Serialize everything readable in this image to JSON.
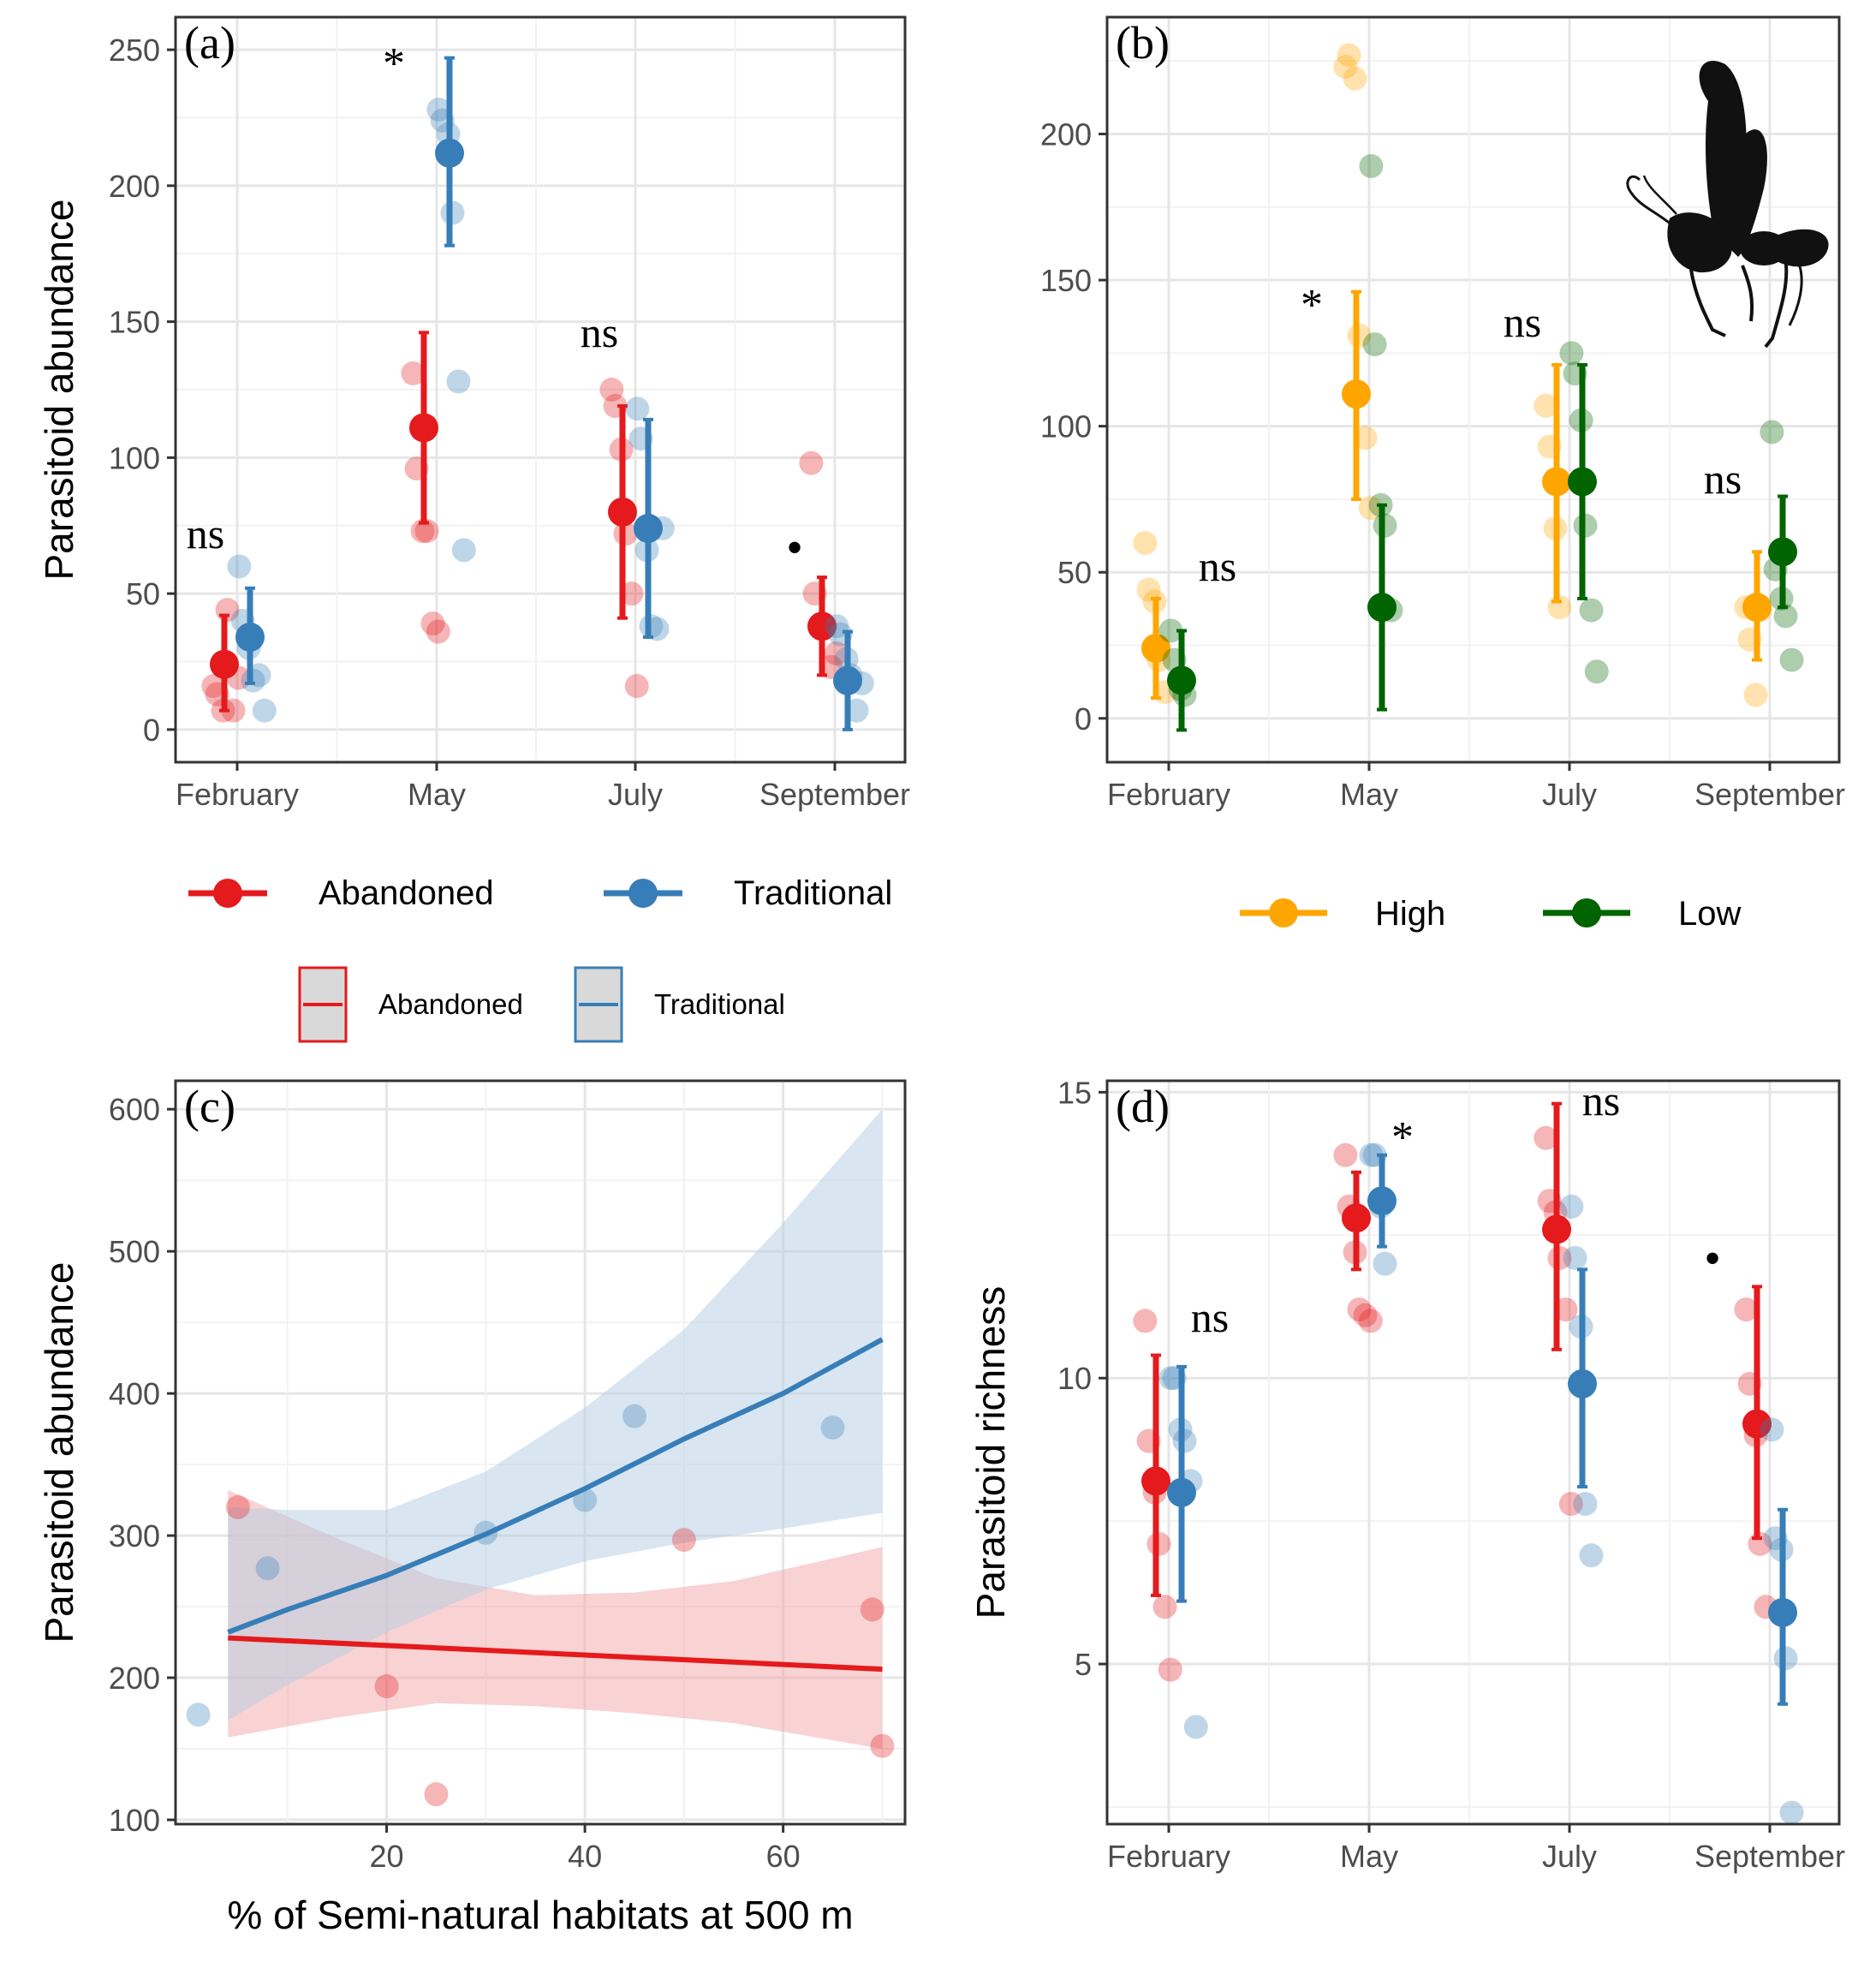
{
  "colors": {
    "abandoned": "#E41A1C",
    "traditional": "#377EB8",
    "high": "#FFA500",
    "low": "#006400",
    "abandoned_ribbon": "#F4A6A7",
    "traditional_ribbon": "#B3CDE3"
  },
  "chart_data": [
    {
      "panel": "(a)",
      "type": "scatter",
      "xlabel": "",
      "ylabel": "Parasitoid abundance",
      "categories": [
        "February",
        "May",
        "July",
        "September"
      ],
      "ylim": [
        -12,
        262
      ],
      "yticks": [
        0,
        50,
        100,
        150,
        200,
        250
      ],
      "series": [
        {
          "name": "Abandoned",
          "color_key": "abandoned",
          "mean": [
            24,
            111,
            80,
            38
          ],
          "lower": [
            7,
            76,
            41,
            20
          ],
          "upper": [
            42,
            146,
            119,
            56
          ],
          "raw": [
            [
              16,
              13,
              7,
              44,
              7,
              19
            ],
            [
              131,
              96,
              73,
              73,
              39,
              36
            ],
            [
              125,
              119,
              103,
              72,
              50,
              16
            ],
            [
              98,
              50,
              38,
              38,
              23,
              28
            ]
          ]
        },
        {
          "name": "Traditional",
          "color_key": "traditional",
          "mean": [
            34,
            212,
            74,
            18
          ],
          "lower": [
            17,
            178,
            34,
            0
          ],
          "upper": [
            52,
            247,
            114,
            36
          ],
          "raw": [
            [
              60,
              40,
              30,
              18,
              20,
              7
            ],
            [
              228,
              224,
              219,
              190,
              128,
              66
            ],
            [
              118,
              107,
              66,
              38,
              37,
              74
            ],
            [
              38,
              35,
              26,
              20,
              7,
              17
            ]
          ]
        }
      ],
      "annotations": [
        "ns",
        "*",
        "ns",
        "•"
      ],
      "legend": [
        "Abandoned",
        "Traditional"
      ]
    },
    {
      "panel": "(b)",
      "type": "scatter",
      "xlabel": "",
      "ylabel": "",
      "categories": [
        "February",
        "May",
        "July",
        "September"
      ],
      "ylim": [
        -15,
        240
      ],
      "yticks": [
        0,
        50,
        100,
        150,
        200
      ],
      "series": [
        {
          "name": "High",
          "color_key": "high",
          "mean": [
            24,
            111,
            81,
            38
          ],
          "lower": [
            7,
            75,
            40,
            20
          ],
          "upper": [
            41,
            146,
            121,
            57
          ],
          "raw": [
            [
              60,
              44,
              40,
              20,
              9
            ],
            [
              223,
              227,
              219,
              131,
              96,
              72
            ],
            [
              107,
              93,
              65,
              38
            ],
            [
              38,
              27,
              8,
              37
            ]
          ]
        },
        {
          "name": "Low",
          "color_key": "low",
          "mean": [
            13,
            38,
            81,
            57
          ],
          "lower": [
            -4,
            3,
            41,
            38
          ],
          "upper": [
            30,
            73,
            121,
            76
          ],
          "raw": [
            [
              30,
              20,
              10,
              8
            ],
            [
              189,
              128,
              73,
              66,
              37
            ],
            [
              125,
              118,
              102,
              66,
              37,
              16
            ],
            [
              98,
              51,
              41,
              35,
              20
            ]
          ]
        }
      ],
      "annotations": [
        "ns",
        "*",
        "ns",
        "ns"
      ],
      "legend": [
        "High",
        "Low"
      ]
    },
    {
      "panel": "(c)",
      "type": "line",
      "xlabel": "% of Semi-natural habitats at 500 m",
      "ylabel": "Parasitoid abundance",
      "xlim": [
        0,
        71
      ],
      "ylim": [
        97,
        620
      ],
      "xticks": [
        20,
        40,
        60
      ],
      "yticks": [
        100,
        200,
        300,
        400,
        500,
        600
      ],
      "series": [
        {
          "name": "Abandoned",
          "color_key": "abandoned",
          "fit_x": [
            4,
            70
          ],
          "fit_y": [
            228,
            206
          ],
          "ribbon_x": [
            4,
            15,
            25,
            35,
            45,
            55,
            70
          ],
          "ribbon_lower": [
            158,
            172,
            182,
            180,
            175,
            168,
            150
          ],
          "ribbon_upper": [
            332,
            298,
            270,
            258,
            260,
            268,
            292
          ],
          "points": [
            [
              5,
              320
            ],
            [
              20,
              194
            ],
            [
              25,
              118
            ],
            [
              50,
              297
            ],
            [
              69,
              248
            ],
            [
              70,
              152
            ]
          ]
        },
        {
          "name": "Traditional",
          "color_key": "traditional",
          "fit_x": [
            4,
            10,
            20,
            30,
            40,
            50,
            60,
            70
          ],
          "fit_y": [
            232,
            248,
            272,
            301,
            333,
            368,
            400,
            438
          ],
          "ribbon_x": [
            4,
            10,
            20,
            30,
            40,
            50,
            60,
            70
          ],
          "ribbon_lower": [
            170,
            195,
            232,
            262,
            282,
            295,
            305,
            316
          ],
          "ribbon_upper": [
            320,
            318,
            318,
            345,
            390,
            445,
            520,
            600
          ],
          "points": [
            [
              1,
              174
            ],
            [
              8,
              277
            ],
            [
              30,
              302
            ],
            [
              40,
              325
            ],
            [
              45,
              384
            ],
            [
              65,
              376
            ]
          ]
        }
      ],
      "legend": [
        "Abandoned",
        "Traditional"
      ]
    },
    {
      "panel": "(d)",
      "type": "scatter",
      "xlabel": "",
      "ylabel": "Parasitoid richness",
      "categories": [
        "February",
        "May",
        "July",
        "September"
      ],
      "ylim": [
        2.2,
        15.2
      ],
      "yticks": [
        5,
        10,
        15
      ],
      "series": [
        {
          "name": "Abandoned",
          "color_key": "abandoned",
          "mean": [
            8.2,
            12.8,
            12.6,
            9.2
          ],
          "lower": [
            6.2,
            11.9,
            10.5,
            7.2
          ],
          "upper": [
            10.4,
            13.6,
            14.8,
            11.6
          ],
          "raw": [
            [
              11,
              8.9,
              8,
              7.1,
              6,
              4.9
            ],
            [
              13.9,
              13,
              12.2,
              11.2,
              11.1,
              11
            ],
            [
              14.2,
              13.1,
              12.9,
              12.1,
              11.2,
              7.8
            ],
            [
              11.2,
              9.9,
              9,
              7.1,
              6
            ]
          ]
        },
        {
          "name": "Traditional",
          "color_key": "traditional",
          "mean": [
            8.0,
            13.1,
            9.9,
            5.9
          ],
          "lower": [
            6.1,
            12.3,
            8.1,
            4.3
          ],
          "upper": [
            10.2,
            13.9,
            11.9,
            7.7
          ],
          "raw": [
            [
              10,
              10,
              9.1,
              8.9,
              8.2,
              3.9
            ],
            [
              13.9,
              13.9,
              13,
              12
            ],
            [
              13,
              12.1,
              10.9,
              7.8,
              6.9
            ],
            [
              9.1,
              7.2,
              7,
              5.1,
              2.4
            ]
          ]
        }
      ],
      "annotations": [
        "ns",
        "*",
        "ns",
        "•"
      ],
      "legend": [
        "Abandoned",
        "Traditional"
      ]
    }
  ]
}
